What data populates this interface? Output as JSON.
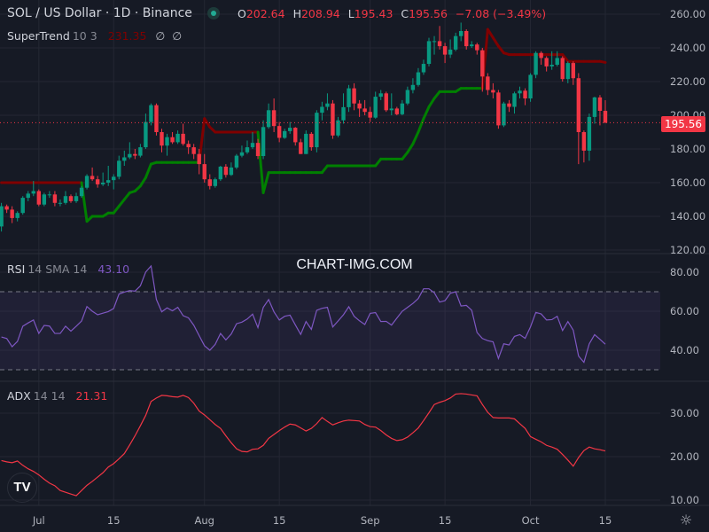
{
  "header": {
    "symbol_title": "SOL / US Dollar · 1D · Binance",
    "open_label": "O",
    "open": "202.64",
    "high_label": "H",
    "high": "208.94",
    "low_label": "L",
    "low": "195.43",
    "close_label": "C",
    "close": "195.56",
    "change": "−7.08 (−3.49%)"
  },
  "supertrend_legend": {
    "name": "SuperTrend",
    "params": "10 3",
    "value": "231.35",
    "extra1": "∅",
    "extra2": "∅"
  },
  "rsi_legend": {
    "name": "RSI",
    "params": "14 SMA 14",
    "value": "43.10"
  },
  "adx_legend": {
    "name": "ADX",
    "params": "14 14",
    "value": "21.31"
  },
  "watermark": "CHART-IMG.COM",
  "last_price_label": "195.56",
  "logo_text": "TV",
  "icons": {
    "live": "market-open-dot",
    "settings": "gear-icon",
    "logo": "tradingview-logo"
  },
  "colors": {
    "up": "#089981",
    "down": "#f23645",
    "st_up": "#008000",
    "st_down": "#800000",
    "rsi": "#7e57c2",
    "adx": "#f23645",
    "bg": "#161a25",
    "grid": "#242733"
  },
  "chart_data": [
    {
      "type": "candlestick",
      "title": "SOL / US Dollar · 1D · Binance",
      "first_open": 134,
      "close": [
        146,
        144,
        139,
        142,
        151,
        153.5,
        155,
        147,
        153,
        153,
        148,
        148,
        152,
        149,
        152,
        157,
        164,
        162,
        159,
        160,
        161.5,
        163.5,
        173,
        175,
        177,
        176,
        181,
        196,
        206,
        190,
        182,
        187,
        184,
        189,
        183,
        181,
        177,
        171,
        162,
        158,
        162,
        169.5,
        164.6,
        169,
        176,
        178,
        181,
        183.6,
        175.8,
        193,
        203,
        193.6,
        186.6,
        190.6,
        192.6,
        184,
        177,
        189,
        181,
        201.5,
        205,
        207,
        188,
        197,
        204.8,
        216,
        207,
        204,
        202,
        198.6,
        211,
        213,
        203,
        204,
        200.6,
        207,
        215,
        218,
        225.5,
        230.5,
        244,
        244,
        241,
        236,
        239,
        247,
        250,
        241,
        242,
        238.6,
        223,
        215,
        213.5,
        194,
        207,
        205,
        213,
        214.6,
        210,
        224,
        237,
        234,
        229,
        230,
        234,
        221.5,
        231,
        222,
        190,
        179,
        199,
        210.6,
        202.64,
        195.56
      ],
      "high": [
        148,
        147,
        146,
        143,
        152,
        155,
        161,
        156,
        154,
        155,
        155,
        150,
        155,
        153,
        154,
        158,
        165,
        169,
        164,
        166,
        170,
        165,
        176,
        179,
        184,
        180,
        183,
        201,
        207,
        207,
        192,
        189,
        190,
        191,
        195,
        185,
        183,
        180,
        177,
        165,
        163,
        170,
        171,
        172,
        177,
        182,
        185,
        190,
        186,
        197,
        207,
        210,
        196,
        192,
        196,
        193,
        186,
        191,
        190,
        203,
        208,
        213,
        209,
        199,
        213,
        218,
        219,
        209,
        209,
        205,
        214,
        215,
        214,
        213,
        205,
        209,
        217,
        222,
        228,
        233,
        246,
        247,
        253,
        243,
        245,
        249,
        255,
        251,
        244,
        243,
        240,
        225,
        219,
        215,
        208,
        209,
        214,
        217,
        216,
        225,
        238,
        238,
        235,
        238,
        238,
        235,
        232,
        232,
        225,
        191,
        201,
        211,
        212,
        208.94
      ],
      "low": [
        131,
        142,
        136,
        137,
        141,
        149,
        152,
        146,
        146,
        151,
        146,
        146,
        147,
        148,
        148,
        151,
        156,
        161,
        157,
        158,
        158,
        156,
        162,
        170,
        174,
        174,
        175,
        180,
        194,
        188,
        178,
        176,
        183,
        183,
        182,
        177,
        174,
        165,
        160,
        156,
        157,
        161,
        163,
        164,
        168,
        175,
        177,
        180,
        174,
        174,
        192,
        190,
        184,
        186,
        189,
        182,
        177,
        177,
        179,
        178,
        197,
        203,
        186,
        187,
        195,
        202,
        203,
        199,
        200,
        196,
        198,
        209,
        202,
        200,
        200,
        200,
        206,
        213,
        217,
        224,
        229,
        236,
        239,
        231,
        234,
        238,
        244,
        239,
        240,
        236,
        214,
        212,
        210,
        192,
        193,
        202,
        201,
        210,
        206,
        208,
        222,
        230,
        226,
        227,
        229,
        220,
        219,
        218,
        171,
        172,
        173,
        195,
        194,
        195.43
      ],
      "supertrend": {
        "values": [
          160,
          160,
          160,
          160,
          160,
          160,
          160,
          160,
          160,
          160,
          160,
          160,
          160,
          160,
          160,
          160,
          137,
          140,
          140,
          140,
          142,
          142,
          146,
          150,
          154,
          155,
          158,
          163,
          171,
          172,
          172,
          172,
          172,
          172,
          172,
          172,
          172,
          172,
          198,
          193,
          190,
          190,
          190,
          190,
          190,
          190,
          190,
          190,
          190,
          154,
          166,
          166,
          166,
          166,
          166,
          166,
          166,
          166,
          166,
          166,
          166,
          170,
          170,
          170,
          170,
          170,
          170,
          170,
          170,
          170,
          170,
          174,
          174,
          174,
          174,
          174,
          178,
          183,
          190,
          198,
          205,
          210,
          214,
          214,
          214,
          214,
          216,
          216,
          216,
          216,
          216,
          251,
          246,
          241,
          237,
          236,
          236,
          236,
          236,
          236,
          236,
          236,
          236,
          236,
          236,
          236,
          232,
          232,
          232,
          232,
          232,
          232,
          232,
          231.35
        ],
        "segments": [
          {
            "dir": "down",
            "from": 0,
            "to": 15
          },
          {
            "dir": "up",
            "from": 16,
            "to": 37
          },
          {
            "dir": "down",
            "from": 38,
            "to": 48
          },
          {
            "dir": "up",
            "from": 49,
            "to": 90
          },
          {
            "dir": "down",
            "from": 91,
            "to": 113
          }
        ]
      },
      "y_ticks": [
        "260.00",
        "240.00",
        "220.00",
        "200.00",
        "180.00",
        "160.00",
        "140.00",
        "120.00"
      ],
      "ylim": [
        120,
        260
      ],
      "last_price": 195.56
    },
    {
      "type": "line",
      "title": "RSI 14 SMA 14",
      "values": [
        46.8,
        46,
        41.8,
        44.5,
        52.3,
        54,
        55.5,
        48.6,
        52.7,
        52.4,
        48.6,
        48.6,
        52.3,
        49.8,
        52.3,
        55,
        62.4,
        60,
        58.2,
        59,
        59.8,
        61.4,
        68.8,
        69.8,
        70.6,
        70.3,
        73,
        80.1,
        83.2,
        66,
        59.7,
        61.7,
        60.2,
        62,
        57.7,
        56.6,
        52.8,
        47.5,
        42.3,
        40,
        43,
        48.6,
        45.3,
        48.3,
        53.6,
        54.4,
        56,
        58.5,
        51.6,
        62,
        66,
        59.7,
        55.5,
        57.4,
        58,
        53,
        48.1,
        54.7,
        50.7,
        60.5,
        61.5,
        62,
        51.9,
        55,
        58.2,
        62.3,
        57.4,
        55.1,
        53.2,
        58.9,
        59.3,
        54.7,
        54.8,
        52.9,
        56.5,
        60,
        62,
        64,
        66.5,
        71.5,
        71.5,
        69.5,
        64.7,
        65.4,
        69.2,
        70,
        62.7,
        63,
        60.5,
        49.1,
        46,
        44.9,
        44.3,
        35.8,
        43.3,
        42.7,
        47.1,
        48,
        46.1,
        52,
        59.4,
        58.6,
        55.5,
        55.7,
        57.4,
        50.1,
        54.7,
        50.3,
        37,
        33.8,
        43.3,
        48,
        45.6,
        43.1
      ],
      "bands": [
        70,
        30
      ],
      "y_ticks": [
        "80.00",
        "60.00",
        "40.00"
      ],
      "ylim": [
        25,
        90
      ]
    },
    {
      "type": "line",
      "title": "ADX 14 14",
      "values": [
        19.1,
        18.8,
        18.6,
        19,
        18,
        17.2,
        16.6,
        15.8,
        14.8,
        13.9,
        13.3,
        12.2,
        11.8,
        11.4,
        11,
        12.2,
        13.4,
        14.3,
        15.3,
        16.3,
        17.6,
        18.4,
        19.5,
        20.7,
        22.7,
        24.8,
        27.1,
        29.5,
        32.7,
        33.5,
        34.1,
        34,
        33.8,
        33.7,
        34.1,
        33.6,
        32.3,
        30.5,
        29.6,
        28.5,
        27.4,
        26.5,
        24.8,
        23.2,
        21.8,
        21.2,
        21.1,
        21.7,
        21.8,
        22.6,
        24.2,
        25.1,
        26,
        26.8,
        27.5,
        27.3,
        26.6,
        25.9,
        26.5,
        27.6,
        29,
        28.1,
        27.3,
        27.8,
        28.2,
        28.4,
        28.3,
        28.2,
        27.4,
        26.9,
        26.8,
        26,
        25,
        24.2,
        23.7,
        23.9,
        24.5,
        25.5,
        26.6,
        28.3,
        30.1,
        32,
        32.5,
        32.9,
        33.5,
        34.4,
        34.5,
        34.4,
        34.2,
        34,
        32,
        30.2,
        29,
        28.9,
        28.9,
        28.9,
        28.7,
        27.6,
        26.5,
        24.6,
        24,
        23.4,
        22.6,
        22.2,
        21.7,
        20.5,
        19.2,
        17.8,
        19.8,
        21.4,
        22.2,
        21.8,
        21.6,
        21.31
      ],
      "y_ticks": [
        "30.00",
        "20.00",
        "10.00"
      ],
      "ylim": [
        8,
        37
      ]
    }
  ],
  "x_ticks": [
    {
      "label": "Jul",
      "index": 7
    },
    {
      "label": "15",
      "index": 21
    },
    {
      "label": "Aug",
      "index": 38
    },
    {
      "label": "15",
      "index": 52
    },
    {
      "label": "Sep",
      "index": 69
    },
    {
      "label": "15",
      "index": 83
    },
    {
      "label": "Oct",
      "index": 99
    },
    {
      "label": "15",
      "index": 113
    }
  ]
}
